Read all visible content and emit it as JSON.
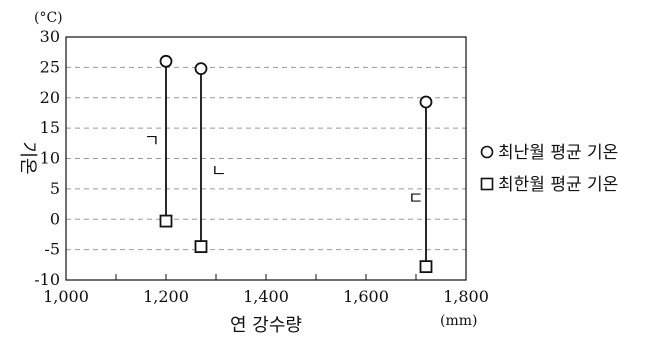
{
  "chart_data": {
    "type": "scatter",
    "xlabel": "연 강수량",
    "ylabel": "기온",
    "x_unit": "(mm)",
    "y_unit": "(°C)",
    "xlim": [
      1000,
      1800
    ],
    "ylim": [
      -10,
      30
    ],
    "x_ticks": [
      1000,
      1200,
      1400,
      1600,
      1800
    ],
    "x_tick_labels": [
      "1,000",
      "1,200",
      "1,400",
      "1,600",
      "1,800"
    ],
    "y_ticks": [
      -10,
      -5,
      0,
      5,
      10,
      15,
      20,
      25,
      30
    ],
    "y_tick_labels": [
      "-10",
      "-5",
      "0",
      "5",
      "10",
      "15",
      "20",
      "25",
      "30"
    ],
    "grid": "horizontal-dashed",
    "legend_position": "right",
    "series": [
      {
        "name": "최난월 평균 기온",
        "marker": "circle"
      },
      {
        "name": "최한월 평균 기온",
        "marker": "square"
      }
    ],
    "points": [
      {
        "label": "ㄱ",
        "x": 1200,
        "warmest": 26,
        "coldest": -0.3
      },
      {
        "label": "ㄴ",
        "x": 1270,
        "warmest": 24.8,
        "coldest": -4.5
      },
      {
        "label": "ㄷ",
        "x": 1720,
        "warmest": 19.3,
        "coldest": -7.8
      }
    ]
  }
}
